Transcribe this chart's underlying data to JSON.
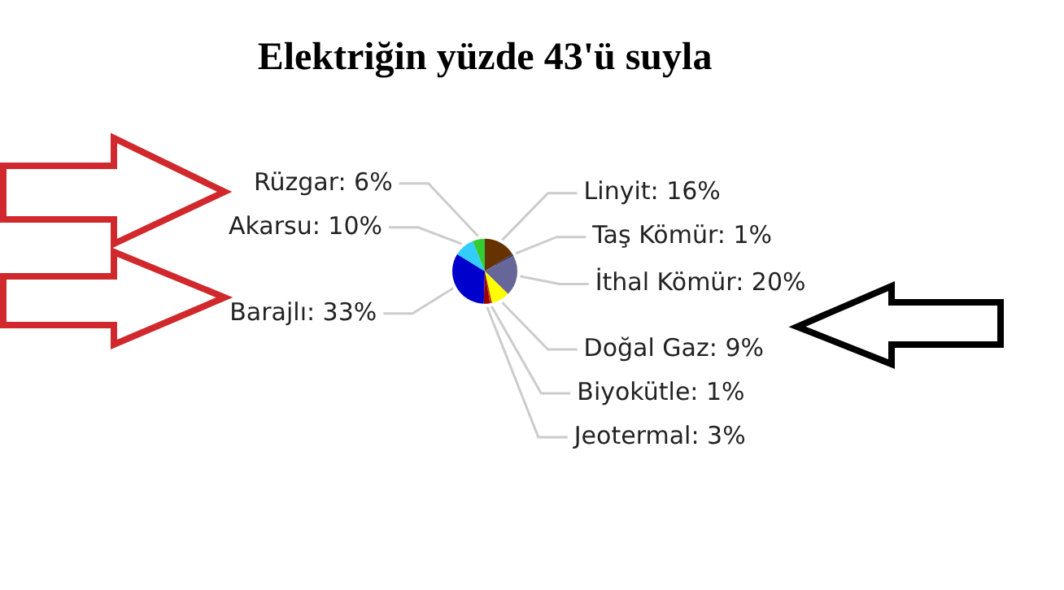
{
  "chart_data": {
    "type": "pie",
    "title": "Elektriğin yüzde 43'ü suyla",
    "categories": [
      "Linyit",
      "Taş Kömür",
      "İthal Kömür",
      "Doğal Gaz",
      "Biyokütle",
      "Jeotermal",
      "Barajlı",
      "Akarsu",
      "Rüzgar"
    ],
    "values": [
      16,
      1,
      20,
      9,
      1,
      3,
      33,
      10,
      6
    ],
    "value_labels": [
      "16%",
      "1%",
      "20%",
      "9%",
      "1%",
      "3%",
      "33%",
      "10%",
      "6%"
    ],
    "colors": [
      "#663300",
      "#333366",
      "#666699",
      "#ffff00",
      "#cc3300",
      "#990000",
      "#0000cc",
      "#33ccff",
      "#33cc33"
    ]
  }
}
